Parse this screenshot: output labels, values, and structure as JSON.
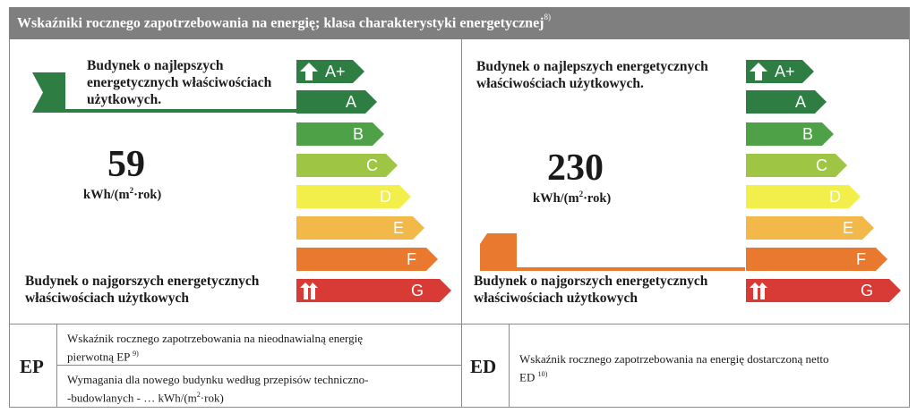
{
  "header": {
    "title": "Wskaźniki rocznego zapotrzebowania na energię; klasa charakterystyki energetycznej",
    "footnote": "8)"
  },
  "scale_classes": [
    {
      "label": "A+",
      "color": "#2e7d43"
    },
    {
      "label": "A",
      "color": "#2e7d43"
    },
    {
      "label": "B",
      "color": "#4ea146"
    },
    {
      "label": "C",
      "color": "#9fc545"
    },
    {
      "label": "D",
      "color": "#f2ef4a"
    },
    {
      "label": "E",
      "color": "#f2b94a"
    },
    {
      "label": "F",
      "color": "#e9792f"
    },
    {
      "label": "G",
      "color": "#d83a35"
    }
  ],
  "left_panel": {
    "best_label": "Budynek o najlepszych\nenergetycznych właściwościach\nużytkowych.",
    "value": "59",
    "unit_prefix": "kWh/(m",
    "unit_sup": "2",
    "unit_suffix": "·rok)",
    "worst_label": "Budynek o najgorszych energetycznych\nwłaściwościach użytkowych",
    "indicator_color": "#2e7d43"
  },
  "right_panel": {
    "best_label": "Budynek o najlepszych energetycznych\nwłaściwościach użytkowych.",
    "value": "230",
    "unit_prefix": "kWh/(m",
    "unit_sup": "2",
    "unit_suffix": "·rok)",
    "worst_label": "Budynek o najgorszych energetycznych\nwłaściwościach użytkowych",
    "indicator_color": "#e9792f"
  },
  "footer": {
    "ep_code": "EP",
    "ep_desc": "Wskaźnik rocznego zapotrzebowania na nieodnawialną energię\npierwotną EP",
    "ep_desc_footnote": "9)",
    "ep_req_line1": "Wymagania dla nowego budynku według przepisów techniczno-",
    "ep_req_line2a": "-budowlanych - … kWh/(m",
    "ep_req_sup": "2",
    "ep_req_line2b": "·rok)",
    "ed_code": "ED",
    "ed_desc": "Wskaźnik rocznego zapotrzebowania na energię dostarczoną netto\nED",
    "ed_desc_footnote": "10)"
  }
}
